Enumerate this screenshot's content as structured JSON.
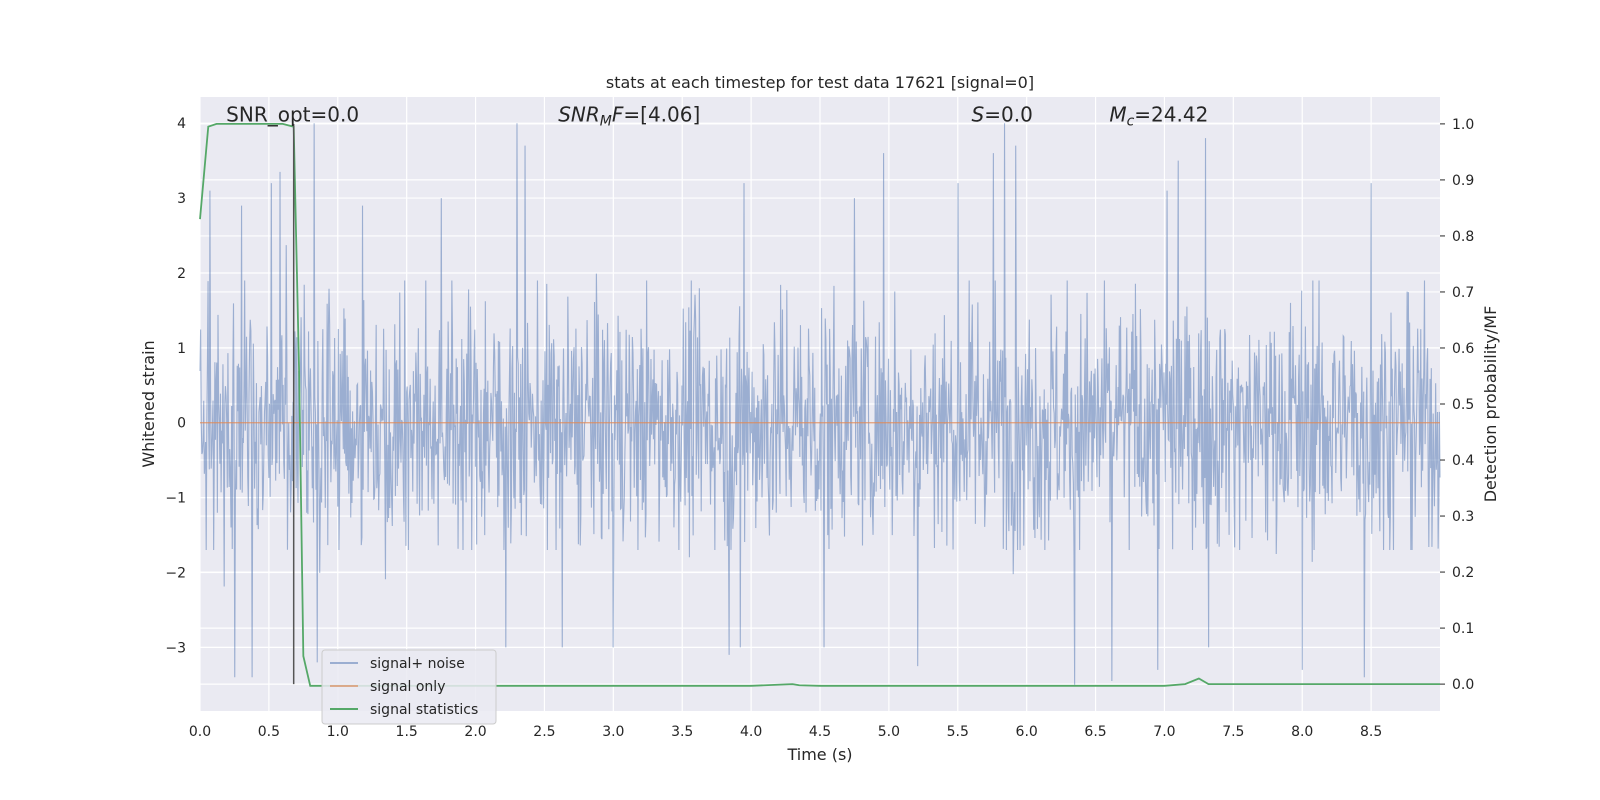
{
  "chart_data": {
    "type": "line",
    "title": "stats at each timestep for test data 17621 [signal=0]",
    "xlabel": "Time (s)",
    "ylabel": "Whitened strain",
    "y2label": "Detection probability/MF",
    "xlim": [
      0.0,
      9.0
    ],
    "ylim": [
      -3.85,
      4.35
    ],
    "y2lim": [
      -0.048,
      1.048
    ],
    "grid": true,
    "x_ticks": [
      "0.0",
      "0.5",
      "1.0",
      "1.5",
      "2.0",
      "2.5",
      "3.0",
      "3.5",
      "4.0",
      "4.5",
      "5.0",
      "5.5",
      "6.0",
      "6.5",
      "7.0",
      "7.5",
      "8.0",
      "8.5"
    ],
    "y_ticks": [
      "4",
      "3",
      "2",
      "1",
      "0",
      "−1",
      "−2",
      "−3"
    ],
    "y2_ticks": [
      "1.0",
      "0.9",
      "0.8",
      "0.7",
      "0.6",
      "0.5",
      "0.4",
      "0.3",
      "0.2",
      "0.1",
      "0.0"
    ],
    "annotations": [
      {
        "label": "SNR_opt=0.0",
        "x": 0.19,
        "y": 4.1
      },
      {
        "label": "SNR_M F=[4.06]",
        "x": 2.6,
        "y": 4.1
      },
      {
        "label": "S=0.0",
        "x": 5.6,
        "y": 4.1
      },
      {
        "label": "M_c=24.42",
        "x": 6.6,
        "y": 4.1
      }
    ],
    "vertical_marker_x": 0.68,
    "legend_position": "lower-left",
    "series": [
      {
        "name": "signal+ noise",
        "color": "#4c72b0",
        "description": "whitened noise strain, approximately within [-3.4, 4.0]",
        "peaks_high": [
          [
            0.07,
            3.1
          ],
          [
            0.3,
            2.9
          ],
          [
            0.52,
            3.2
          ],
          [
            0.58,
            3.35
          ],
          [
            0.83,
            4.0
          ],
          [
            1.18,
            2.9
          ],
          [
            1.75,
            3.0
          ],
          [
            2.22,
            3.4
          ],
          [
            2.3,
            4.0
          ],
          [
            2.36,
            3.7
          ],
          [
            3.95,
            3.2
          ],
          [
            4.75,
            3.0
          ],
          [
            4.96,
            3.6
          ],
          [
            5.5,
            3.2
          ],
          [
            5.76,
            3.6
          ],
          [
            5.84,
            4.0
          ],
          [
            5.92,
            3.7
          ],
          [
            7.1,
            3.5
          ],
          [
            7.3,
            3.8
          ],
          [
            7.02,
            3.1
          ],
          [
            8.5,
            3.2
          ]
        ],
        "peaks_low": [
          [
            0.25,
            -3.4
          ],
          [
            0.38,
            -3.4
          ],
          [
            0.85,
            -3.2
          ],
          [
            2.22,
            -3.0
          ],
          [
            2.63,
            -3.0
          ],
          [
            3.0,
            -3.0
          ],
          [
            3.84,
            -3.1
          ],
          [
            3.92,
            -3.0
          ],
          [
            4.53,
            -3.0
          ],
          [
            5.21,
            -3.25
          ],
          [
            6.35,
            -3.5
          ],
          [
            6.62,
            -3.45
          ],
          [
            6.95,
            -3.3
          ],
          [
            7.32,
            -3.0
          ],
          [
            8.0,
            -3.3
          ],
          [
            8.45,
            -3.4
          ]
        ]
      },
      {
        "name": "signal only",
        "color": "#dd8452",
        "x": [
          0.0,
          9.0
        ],
        "y": [
          0.0,
          0.0
        ]
      },
      {
        "name": "signal statistics",
        "color": "#55a868",
        "axis": "right",
        "x": [
          0.0,
          0.06,
          0.12,
          0.2,
          0.3,
          0.4,
          0.5,
          0.6,
          0.68,
          0.72,
          0.75,
          0.8,
          1.0,
          2.0,
          3.0,
          4.0,
          4.3,
          4.35,
          4.5,
          5.0,
          6.0,
          7.0,
          7.15,
          7.25,
          7.32,
          7.5,
          8.0,
          9.0
        ],
        "y": [
          0.83,
          0.995,
          1.0,
          1.0,
          1.0,
          1.0,
          1.0,
          1.0,
          0.995,
          0.55,
          0.05,
          -0.003,
          -0.003,
          -0.003,
          -0.003,
          -0.003,
          0.0,
          -0.002,
          -0.003,
          -0.003,
          -0.003,
          -0.003,
          0.0,
          0.01,
          0.0,
          0.0,
          0.0,
          0.0
        ]
      }
    ]
  }
}
